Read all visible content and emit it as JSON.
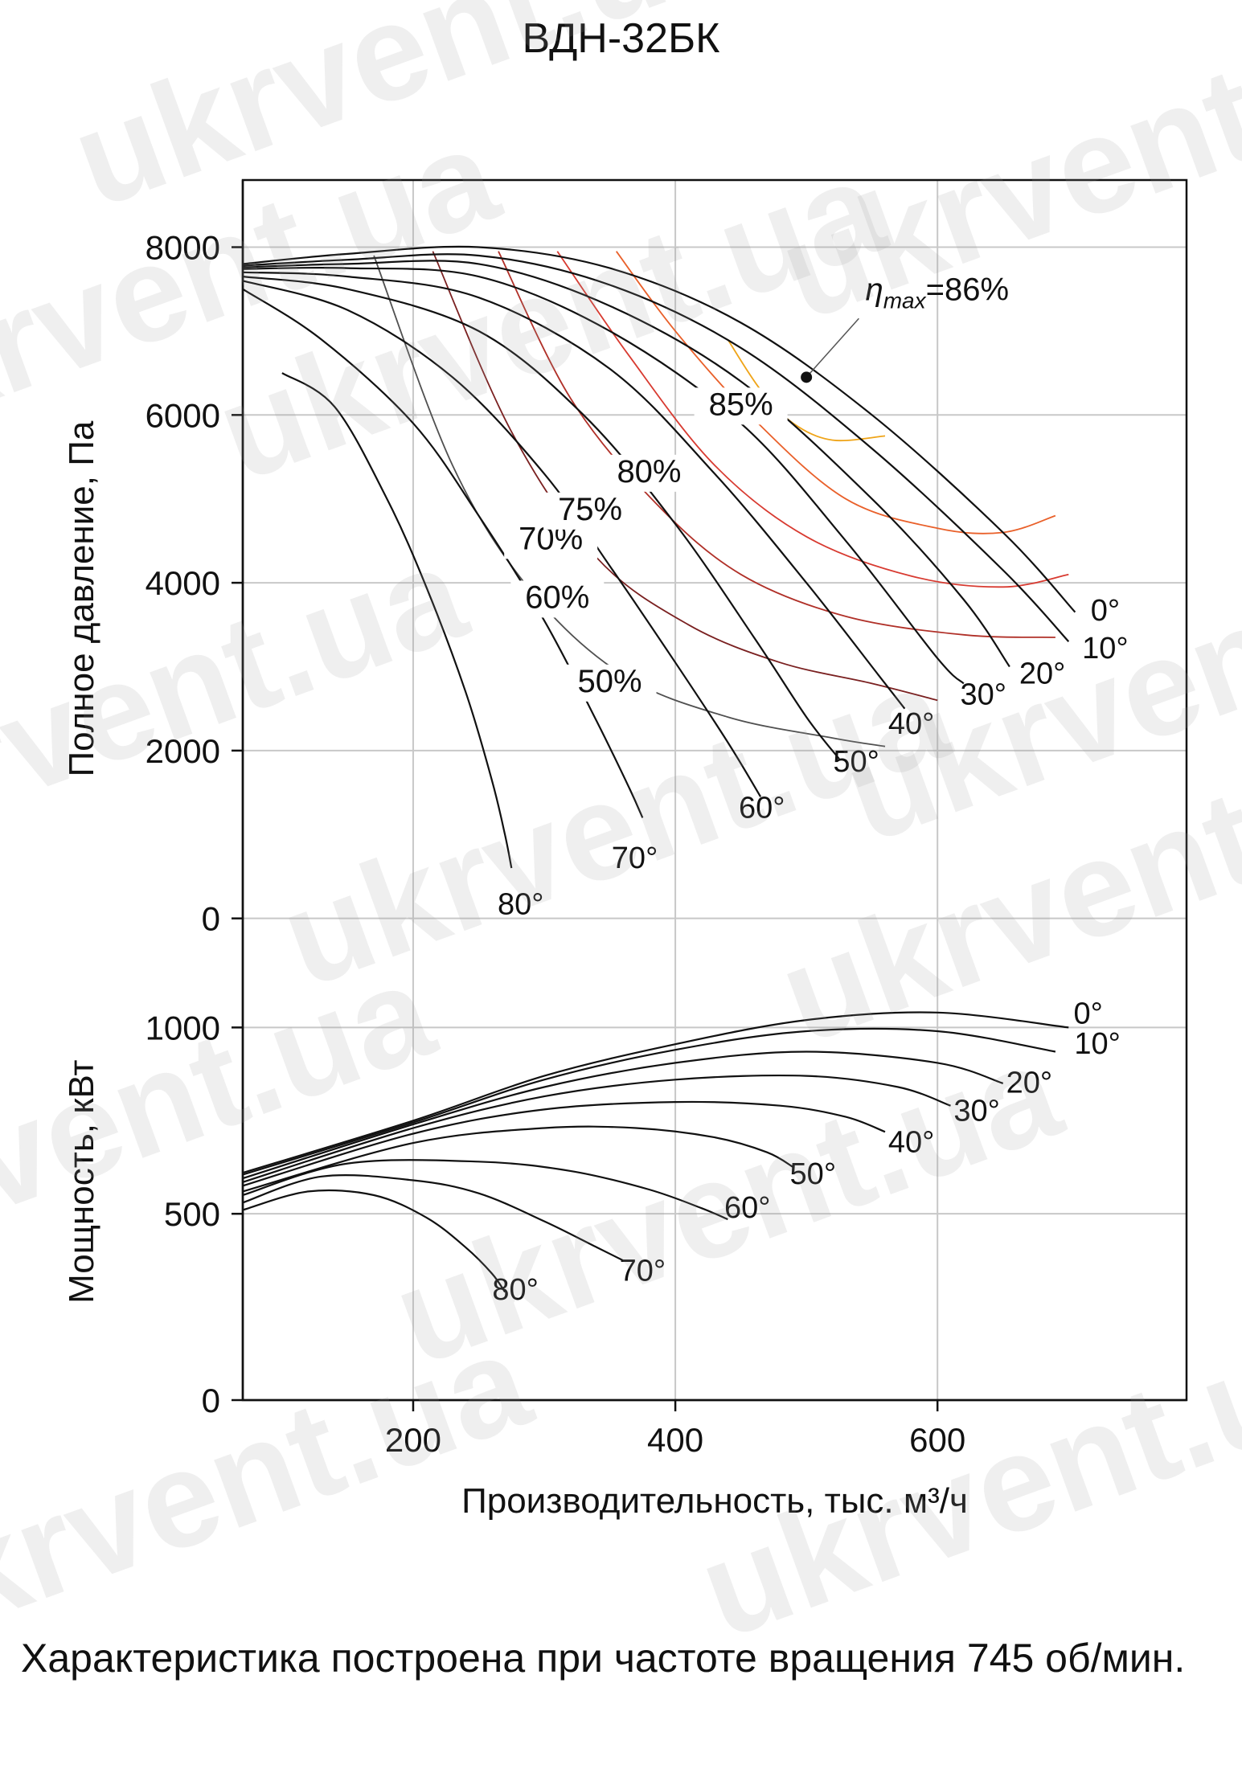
{
  "chart_title": "ВДН-32БК",
  "footnote": "Характеристика построена при частоте вращения 745 об/мин.",
  "watermark_text": "ukrvent.ua",
  "chart_data": [
    {
      "type": "line",
      "name": "pressure",
      "xlabel": "Производительность, тыс. м³/ч",
      "ylabel": "Полное давление, Па",
      "xlim": [
        70,
        790
      ],
      "ylim": [
        -300,
        8800
      ],
      "yticks": [
        "0",
        "2000",
        "4000",
        "6000",
        "8000"
      ],
      "ytick_values": [
        0,
        2000,
        4000,
        6000,
        8000
      ],
      "grid": true,
      "series": [
        {
          "name": "0°",
          "x": [
            70,
            150,
            250,
            350,
            450,
            550,
            650,
            705
          ],
          "y": [
            7800,
            7920,
            8000,
            7750,
            7100,
            6000,
            4600,
            3650
          ]
        },
        {
          "name": "10°",
          "x": [
            70,
            150,
            250,
            350,
            450,
            550,
            650,
            700
          ],
          "y": [
            7780,
            7850,
            7900,
            7550,
            6800,
            5600,
            4150,
            3300
          ]
        },
        {
          "name": "20°",
          "x": [
            70,
            150,
            250,
            350,
            450,
            550,
            620,
            655
          ],
          "y": [
            7760,
            7800,
            7800,
            7300,
            6400,
            5000,
            3800,
            3000
          ]
        },
        {
          "name": "30°",
          "x": [
            70,
            150,
            250,
            350,
            450,
            530,
            600,
            620
          ],
          "y": [
            7740,
            7750,
            7650,
            7000,
            5900,
            4500,
            3100,
            2800
          ]
        },
        {
          "name": "40°",
          "x": [
            70,
            150,
            250,
            350,
            430,
            500,
            555,
            575
          ],
          "y": [
            7700,
            7650,
            7400,
            6550,
            5300,
            4000,
            2900,
            2500
          ]
        },
        {
          "name": "50°",
          "x": [
            70,
            150,
            250,
            330,
            400,
            460,
            500,
            525
          ],
          "y": [
            7650,
            7500,
            7000,
            6000,
            4700,
            3350,
            2400,
            1900
          ]
        },
        {
          "name": "60°",
          "x": [
            70,
            150,
            230,
            300,
            350,
            400,
            440,
            465
          ],
          "y": [
            7600,
            7250,
            6450,
            5300,
            4200,
            3050,
            2100,
            1450
          ]
        },
        {
          "name": "70°",
          "x": [
            70,
            130,
            200,
            250,
            300,
            340,
            365,
            375
          ],
          "y": [
            7500,
            6900,
            5900,
            4800,
            3550,
            2350,
            1550,
            1200
          ]
        },
        {
          "name": "80°",
          "x": [
            100,
            140,
            180,
            210,
            240,
            260,
            270,
            275
          ],
          "y": [
            6500,
            6100,
            5000,
            3950,
            2700,
            1650,
            1000,
            600
          ]
        }
      ],
      "efficiency_curves": [
        {
          "name": "50%",
          "x": [
            170,
            230,
            290,
            360,
            440,
            520,
            560
          ],
          "y": [
            7900,
            5400,
            3900,
            2900,
            2400,
            2150,
            2050
          ],
          "color": "#505050"
        },
        {
          "name": "60%",
          "x": [
            215,
            275,
            340,
            410,
            480,
            550,
            600
          ],
          "y": [
            7950,
            5800,
            4300,
            3500,
            3050,
            2800,
            2600
          ],
          "color": "#7a2020"
        },
        {
          "name": "70%",
          "x": [
            265,
            320,
            385,
            450,
            530,
            620,
            690
          ],
          "y": [
            7950,
            6200,
            4950,
            4100,
            3600,
            3380,
            3350
          ],
          "color": "#b03028"
        },
        {
          "name": "75%",
          "x": [
            310,
            365,
            430,
            500,
            580,
            650,
            700
          ],
          "y": [
            7950,
            6700,
            5400,
            4550,
            4080,
            3950,
            4100
          ],
          "color": "#d83a30"
        },
        {
          "name": "80%",
          "x": [
            355,
            400,
            460,
            530,
            600,
            650,
            690
          ],
          "y": [
            7950,
            7000,
            5950,
            5000,
            4650,
            4600,
            4800
          ],
          "color": "#e9602a"
        },
        {
          "name": "85%",
          "x": [
            440,
            465,
            490,
            520,
            560
          ],
          "y": [
            6900,
            6300,
            5900,
            5700,
            5750
          ],
          "color": "#efa418"
        }
      ],
      "annotation": {
        "text_main": "η",
        "text_sub": "max",
        "text_value": "=86%",
        "point": [
          500,
          6450
        ]
      }
    },
    {
      "type": "line",
      "name": "power",
      "ylabel": "Мощность, кВт",
      "xlabel": "Производительность, тыс. м³/ч",
      "xlim": [
        70,
        790
      ],
      "ylim": [
        0,
        1100
      ],
      "xticks": [
        "200",
        "400",
        "600"
      ],
      "xtick_values": [
        200,
        400,
        600
      ],
      "yticks": [
        "0",
        "500",
        "1000"
      ],
      "ytick_values": [
        0,
        500,
        1000
      ],
      "grid": true,
      "series": [
        {
          "name": "0°",
          "x": [
            70,
            200,
            300,
            400,
            500,
            600,
            700
          ],
          "y": [
            610,
            750,
            870,
            955,
            1020,
            1040,
            1000
          ]
        },
        {
          "name": "10°",
          "x": [
            70,
            200,
            300,
            400,
            500,
            600,
            690
          ],
          "y": [
            605,
            745,
            860,
            940,
            990,
            990,
            935
          ]
        },
        {
          "name": "20°",
          "x": [
            70,
            200,
            300,
            400,
            500,
            600,
            650
          ],
          "y": [
            595,
            740,
            840,
            905,
            935,
            905,
            850
          ]
        },
        {
          "name": "30°",
          "x": [
            70,
            200,
            300,
            400,
            500,
            570,
            610
          ],
          "y": [
            585,
            730,
            815,
            860,
            870,
            840,
            790
          ]
        },
        {
          "name": "40°",
          "x": [
            70,
            200,
            300,
            400,
            480,
            530,
            560
          ],
          "y": [
            575,
            715,
            780,
            800,
            790,
            760,
            720
          ]
        },
        {
          "name": "50°",
          "x": [
            70,
            200,
            300,
            370,
            430,
            470,
            490
          ],
          "y": [
            560,
            690,
            730,
            730,
            705,
            665,
            625
          ]
        },
        {
          "name": "60°",
          "x": [
            70,
            150,
            250,
            320,
            380,
            420,
            440
          ],
          "y": [
            550,
            635,
            640,
            615,
            565,
            515,
            485
          ]
        },
        {
          "name": "70°",
          "x": [
            70,
            130,
            200,
            250,
            300,
            340,
            360
          ],
          "y": [
            530,
            600,
            590,
            555,
            480,
            410,
            375
          ]
        },
        {
          "name": "80°",
          "x": [
            70,
            120,
            170,
            210,
            240,
            260,
            270
          ],
          "y": [
            510,
            560,
            550,
            490,
            410,
            340,
            290
          ]
        }
      ]
    }
  ]
}
